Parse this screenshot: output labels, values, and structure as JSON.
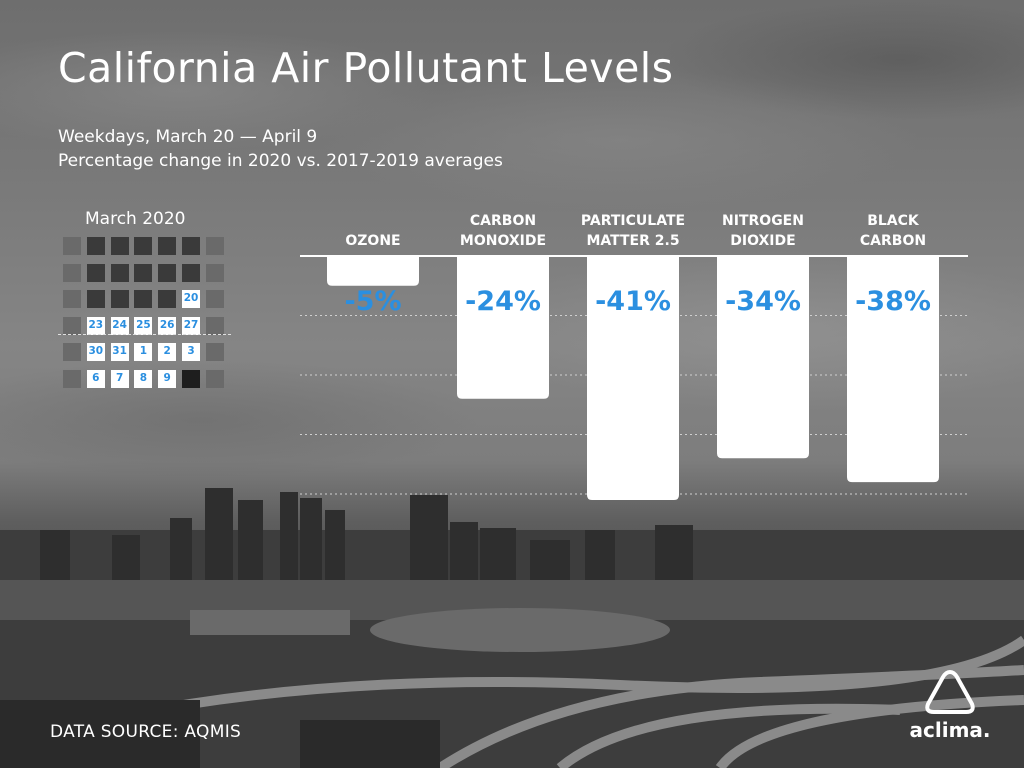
{
  "title": "California Air Pollutant Levels",
  "subtitle_line1": "Weekdays, March 20 — April 9",
  "subtitle_line2": "Percentage change in 2020 vs. 2017-2019 averages",
  "calendar": {
    "title": "March 2020",
    "cells": [
      {
        "label": "",
        "highlighted": false,
        "shade": "#6a6a6a"
      },
      {
        "label": "",
        "highlighted": false,
        "shade": "#3a3a3a"
      },
      {
        "label": "",
        "highlighted": false,
        "shade": "#3a3a3a"
      },
      {
        "label": "",
        "highlighted": false,
        "shade": "#3a3a3a"
      },
      {
        "label": "",
        "highlighted": false,
        "shade": "#3a3a3a"
      },
      {
        "label": "",
        "highlighted": false,
        "shade": "#3a3a3a"
      },
      {
        "label": "",
        "highlighted": false,
        "shade": "#6a6a6a"
      },
      {
        "label": "",
        "highlighted": false,
        "shade": "#6a6a6a"
      },
      {
        "label": "",
        "highlighted": false,
        "shade": "#3a3a3a"
      },
      {
        "label": "",
        "highlighted": false,
        "shade": "#3a3a3a"
      },
      {
        "label": "",
        "highlighted": false,
        "shade": "#3a3a3a"
      },
      {
        "label": "",
        "highlighted": false,
        "shade": "#3a3a3a"
      },
      {
        "label": "",
        "highlighted": false,
        "shade": "#3a3a3a"
      },
      {
        "label": "",
        "highlighted": false,
        "shade": "#6a6a6a"
      },
      {
        "label": "",
        "highlighted": false,
        "shade": "#6a6a6a"
      },
      {
        "label": "",
        "highlighted": false,
        "shade": "#3a3a3a"
      },
      {
        "label": "",
        "highlighted": false,
        "shade": "#3a3a3a"
      },
      {
        "label": "",
        "highlighted": false,
        "shade": "#3a3a3a"
      },
      {
        "label": "",
        "highlighted": false,
        "shade": "#3a3a3a"
      },
      {
        "label": "20",
        "highlighted": true,
        "shade": "#ffffff"
      },
      {
        "label": "",
        "highlighted": false,
        "shade": "#6a6a6a"
      },
      {
        "label": "",
        "highlighted": false,
        "shade": "#6a6a6a"
      },
      {
        "label": "23",
        "highlighted": true,
        "shade": "#ffffff"
      },
      {
        "label": "24",
        "highlighted": true,
        "shade": "#ffffff"
      },
      {
        "label": "25",
        "highlighted": true,
        "shade": "#ffffff"
      },
      {
        "label": "26",
        "highlighted": true,
        "shade": "#ffffff"
      },
      {
        "label": "27",
        "highlighted": true,
        "shade": "#ffffff"
      },
      {
        "label": "",
        "highlighted": false,
        "shade": "#6a6a6a"
      },
      {
        "label": "",
        "highlighted": false,
        "shade": "#6a6a6a"
      },
      {
        "label": "30",
        "highlighted": true,
        "shade": "#ffffff"
      },
      {
        "label": "31",
        "highlighted": true,
        "shade": "#ffffff"
      },
      {
        "label": "1",
        "highlighted": true,
        "shade": "#ffffff"
      },
      {
        "label": "2",
        "highlighted": true,
        "shade": "#ffffff"
      },
      {
        "label": "3",
        "highlighted": true,
        "shade": "#ffffff"
      },
      {
        "label": "",
        "highlighted": false,
        "shade": "#6a6a6a"
      },
      {
        "label": "",
        "highlighted": false,
        "shade": "#6a6a6a"
      },
      {
        "label": "6",
        "highlighted": true,
        "shade": "#ffffff"
      },
      {
        "label": "7",
        "highlighted": true,
        "shade": "#ffffff"
      },
      {
        "label": "8",
        "highlighted": true,
        "shade": "#ffffff"
      },
      {
        "label": "9",
        "highlighted": true,
        "shade": "#ffffff"
      },
      {
        "label": "",
        "highlighted": false,
        "shade": "#1e1e1e"
      },
      {
        "label": "",
        "highlighted": false,
        "shade": "#6a6a6a"
      }
    ]
  },
  "chart_data": {
    "type": "bar",
    "categories": [
      [
        "OZONE"
      ],
      [
        "CARBON",
        "MONOXIDE"
      ],
      [
        "PARTICULATE",
        "MATTER 2.5"
      ],
      [
        "NITROGEN",
        "DIOXIDE"
      ],
      [
        "BLACK",
        "CARBON"
      ]
    ],
    "values": [
      -5,
      -24,
      -41,
      -34,
      -38
    ],
    "value_labels": [
      "-5%",
      "-24%",
      "-41%",
      "-34%",
      "-38%"
    ],
    "ylim": [
      -42,
      0
    ],
    "gridlines": [
      -10,
      -20,
      -30,
      -40
    ],
    "bar_color": "#ffffff",
    "label_color": "#2b8fe0"
  },
  "source": "DATA SOURCE: AQMIS",
  "logo": {
    "name": "aclima-logo",
    "text": "aclima."
  }
}
